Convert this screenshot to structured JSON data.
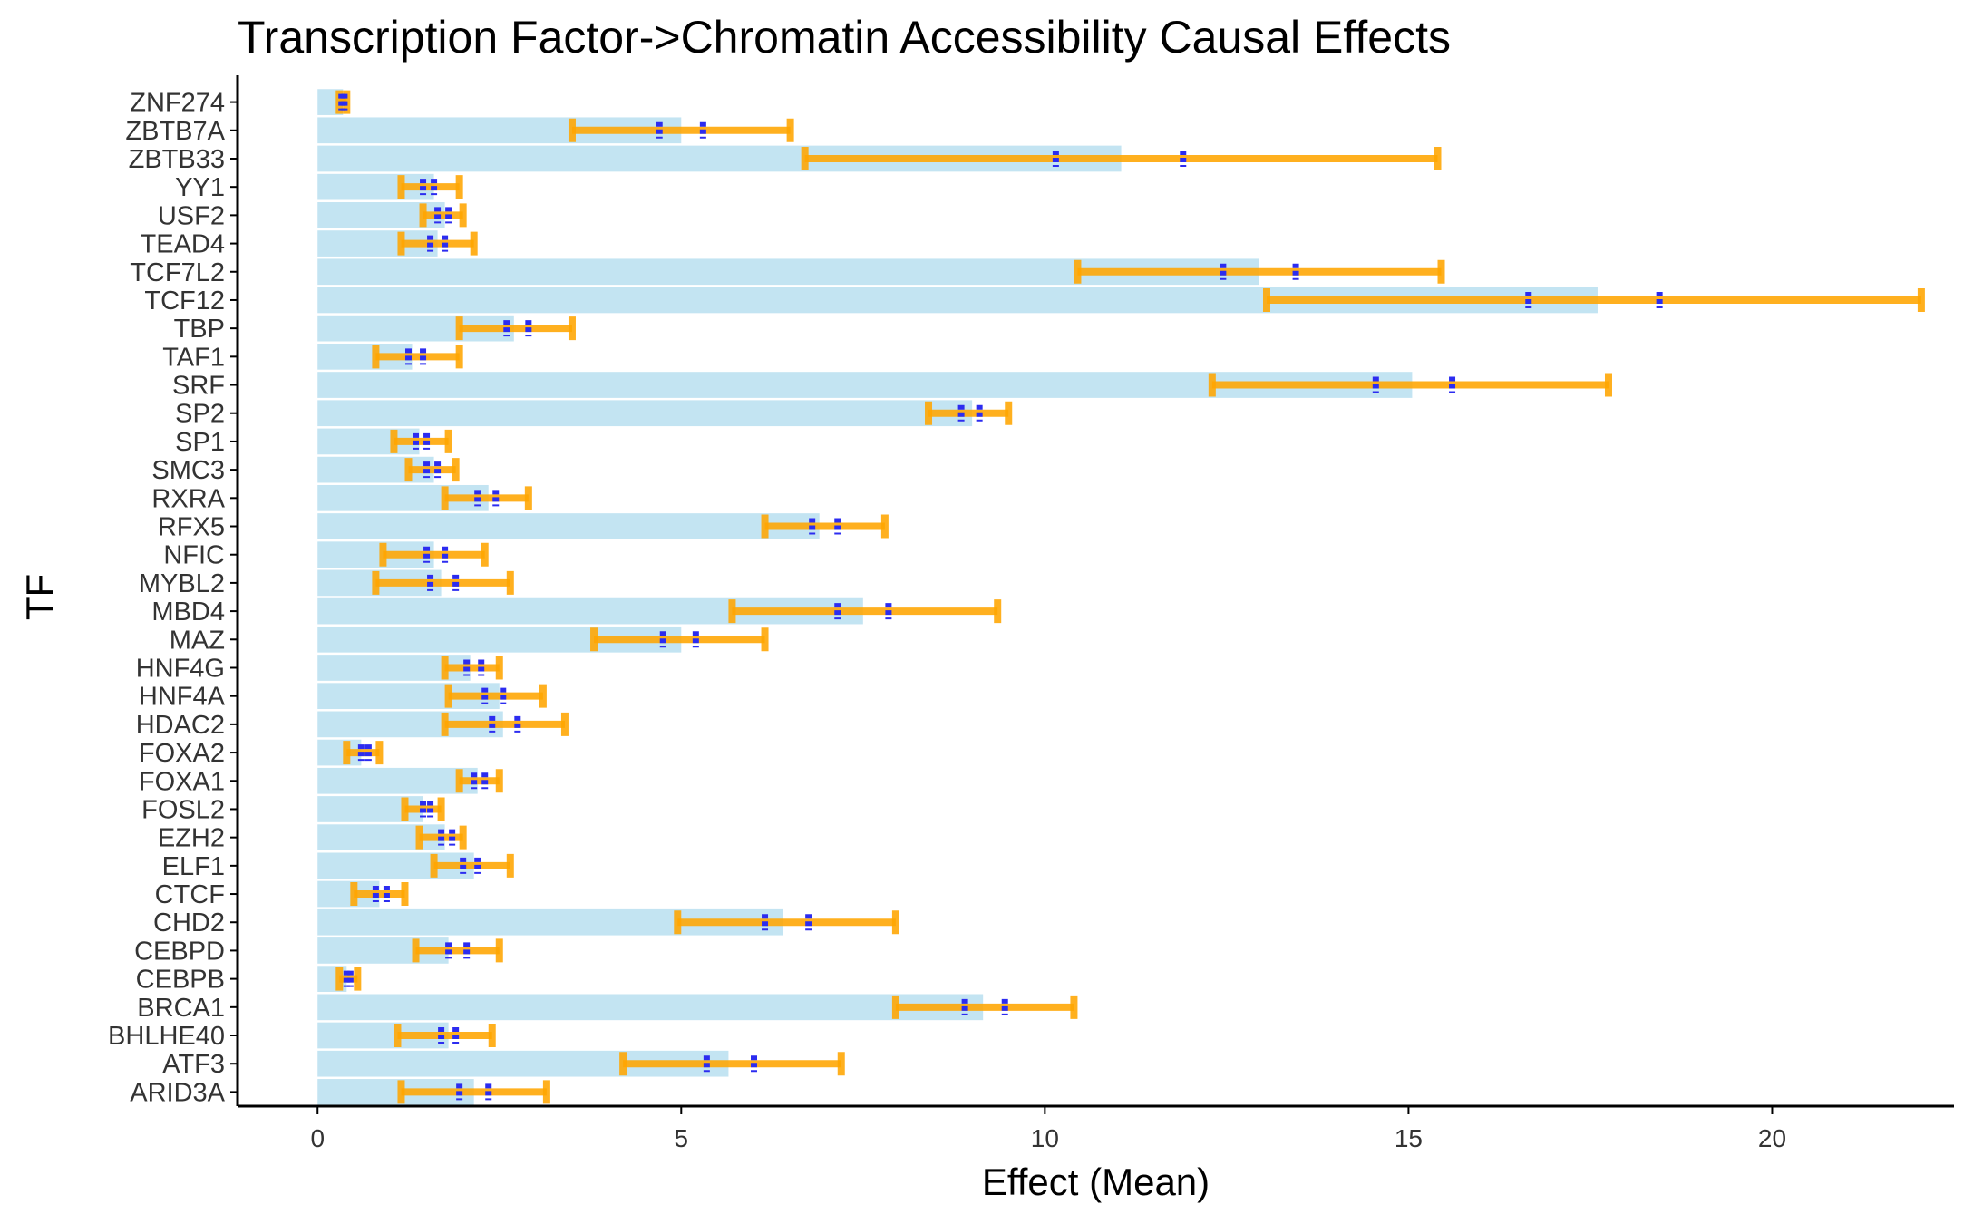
{
  "chart_data": {
    "type": "bar",
    "orientation": "horizontal",
    "title": "Transcription Factor->Chromatin Accessibility Causal Effects",
    "xlabel": "Effect (Mean)",
    "ylabel": "TF",
    "xlim": [
      -1.1,
      22.5
    ],
    "xticks": [
      0,
      5,
      10,
      15,
      20
    ],
    "grid": false,
    "colors": {
      "bar": "#c3e4f2",
      "errorbar": "#ffa500",
      "inner_marks": "#2c2cf0",
      "axis": "#000000",
      "text": "#333333"
    },
    "categories": [
      "ZNF274",
      "ZBTB7A",
      "ZBTB33",
      "YY1",
      "USF2",
      "TEAD4",
      "TCF7L2",
      "TCF12",
      "TBP",
      "TAF1",
      "SRF",
      "SP2",
      "SP1",
      "SMC3",
      "RXRA",
      "RFX5",
      "NFIC",
      "MYBL2",
      "MBD4",
      "MAZ",
      "HNF4G",
      "HNF4A",
      "HDAC2",
      "FOXA2",
      "FOXA1",
      "FOSL2",
      "EZH2",
      "ELF1",
      "CTCF",
      "CHD2",
      "CEBPD",
      "CEBPB",
      "BRCA1",
      "BHLHE40",
      "ATF3",
      "ARID3A"
    ],
    "values": [
      0.35,
      5.0,
      11.05,
      1.6,
      1.75,
      1.65,
      12.95,
      17.6,
      2.7,
      1.3,
      15.05,
      9.0,
      1.4,
      1.6,
      2.35,
      6.9,
      1.6,
      1.7,
      7.5,
      5.0,
      2.1,
      2.5,
      2.55,
      0.6,
      2.2,
      1.45,
      1.75,
      2.15,
      0.85,
      6.4,
      1.8,
      0.4,
      9.15,
      1.8,
      5.65,
      2.15
    ],
    "lower": [
      0.3,
      3.5,
      6.7,
      1.15,
      1.45,
      1.15,
      10.45,
      13.05,
      1.95,
      0.8,
      12.3,
      8.4,
      1.05,
      1.25,
      1.75,
      6.15,
      0.9,
      0.8,
      5.7,
      3.8,
      1.75,
      1.8,
      1.75,
      0.4,
      1.95,
      1.2,
      1.4,
      1.6,
      0.5,
      4.95,
      1.35,
      0.3,
      7.95,
      1.1,
      4.2,
      1.15
    ],
    "upper": [
      0.4,
      6.5,
      15.4,
      1.95,
      2.0,
      2.15,
      15.45,
      22.05,
      3.5,
      1.95,
      17.75,
      9.5,
      1.8,
      1.9,
      2.9,
      7.8,
      2.3,
      2.65,
      9.35,
      6.15,
      2.5,
      3.1,
      3.4,
      0.85,
      2.5,
      1.7,
      2.0,
      2.65,
      1.2,
      7.95,
      2.5,
      0.55,
      10.4,
      2.4,
      7.2,
      3.15
    ],
    "inner_low": [
      0.33,
      4.7,
      10.15,
      1.45,
      1.65,
      1.55,
      12.45,
      16.65,
      2.6,
      1.25,
      14.55,
      8.85,
      1.35,
      1.5,
      2.2,
      6.8,
      1.5,
      1.55,
      7.15,
      4.75,
      2.05,
      2.3,
      2.4,
      0.6,
      2.15,
      1.45,
      1.7,
      2.0,
      0.8,
      6.15,
      1.8,
      0.4,
      8.9,
      1.7,
      5.35,
      1.95
    ],
    "inner_high": [
      0.37,
      5.3,
      11.9,
      1.6,
      1.8,
      1.75,
      13.45,
      18.45,
      2.9,
      1.45,
      15.6,
      9.1,
      1.5,
      1.65,
      2.45,
      7.15,
      1.75,
      1.9,
      7.85,
      5.2,
      2.25,
      2.55,
      2.75,
      0.7,
      2.3,
      1.55,
      1.85,
      2.2,
      0.95,
      6.75,
      2.05,
      0.45,
      9.45,
      1.9,
      6.0,
      2.35
    ]
  }
}
